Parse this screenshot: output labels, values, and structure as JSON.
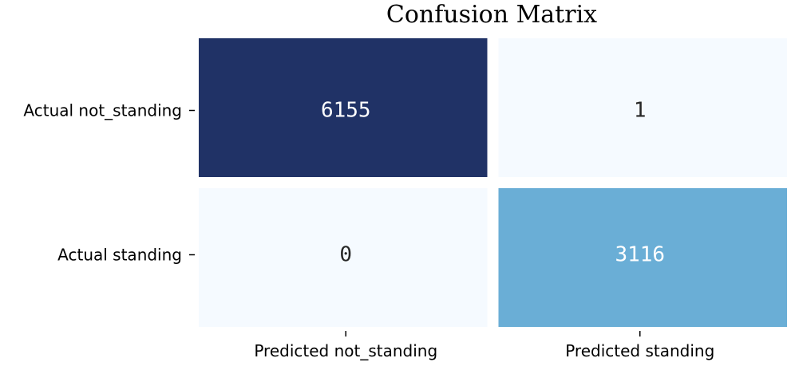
{
  "chart_data": {
    "type": "heatmap",
    "title": "Confusion Matrix",
    "xlabel": "",
    "ylabel": "",
    "x_categories": [
      "Predicted not_standing",
      "Predicted standing"
    ],
    "y_categories": [
      "Actual not_standing",
      "Actual standing"
    ],
    "values": [
      [
        6155,
        1
      ],
      [
        0,
        3116
      ]
    ],
    "colormap": "Blues",
    "colorbar": false,
    "annotations": true,
    "cell_colors": [
      [
        "#203266",
        "#f5faff"
      ],
      [
        "#f5faff",
        "#6aaed6"
      ]
    ],
    "text_colors": [
      [
        "#ffffff",
        "#262626"
      ],
      [
        "#262626",
        "#ffffff"
      ]
    ]
  }
}
